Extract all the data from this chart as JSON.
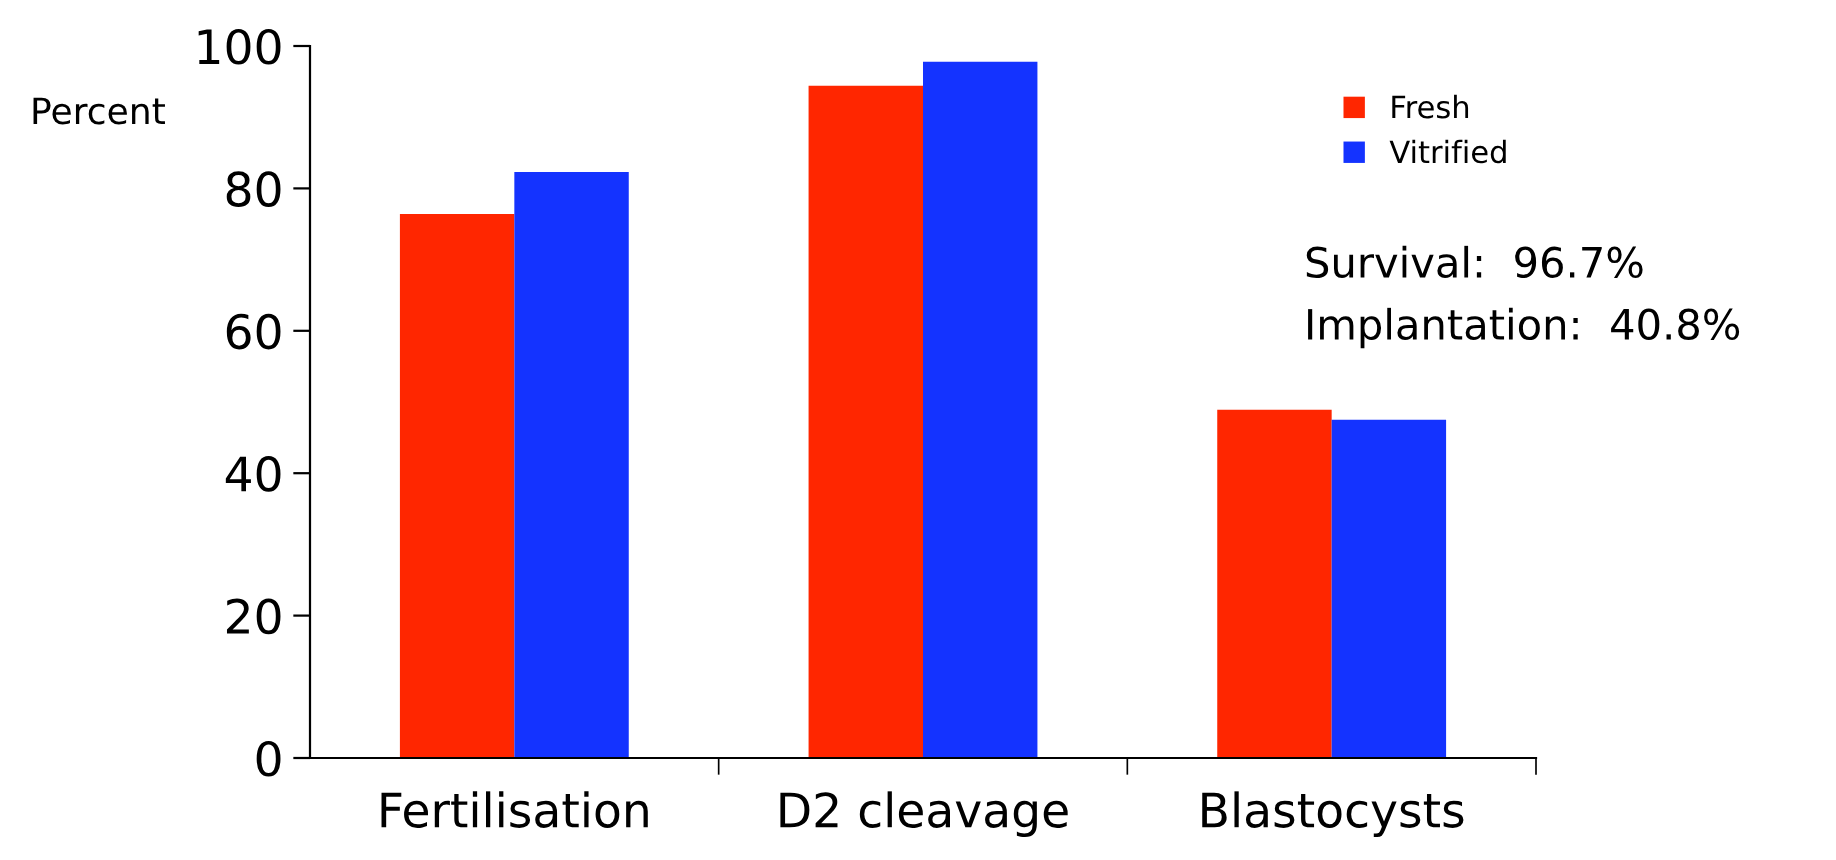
{
  "chart_data": {
    "type": "bar",
    "ylabel": "Percent",
    "categories": [
      "Fertilisation",
      "D2 cleavage",
      "Blastocysts"
    ],
    "series": [
      {
        "name": "Fresh",
        "color": "#ff2600",
        "values": [
          76.4,
          94.4,
          48.9
        ]
      },
      {
        "name": "Vitrified",
        "color": "#1433ff",
        "values": [
          82.3,
          97.8,
          47.5
        ]
      }
    ],
    "ylim": [
      0,
      100
    ],
    "yticks": [
      0,
      20,
      40,
      60,
      80,
      100
    ],
    "grid": false,
    "legend": "top right",
    "annotations": [
      "Survival:  96.7%",
      "Implantation:  40.8%"
    ]
  }
}
